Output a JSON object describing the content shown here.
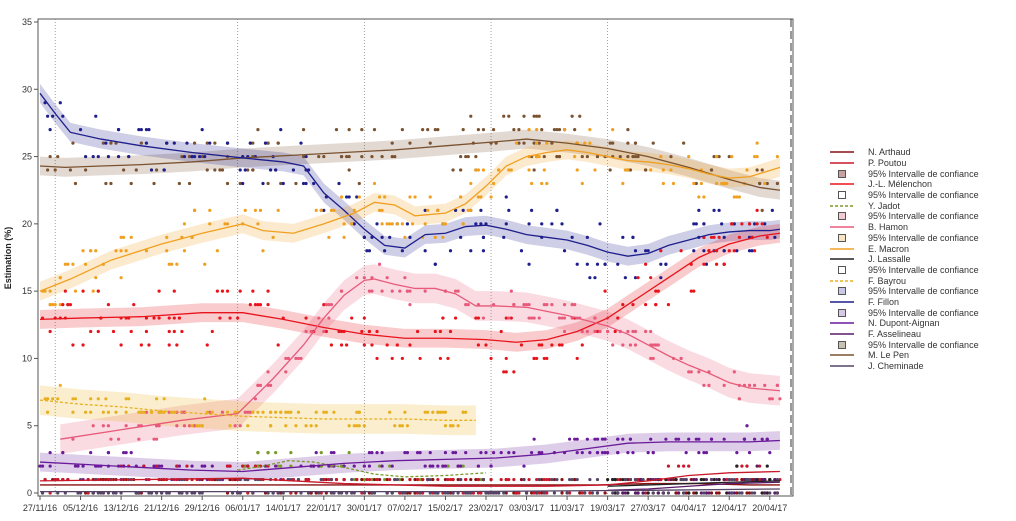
{
  "chart_data": {
    "type": "line",
    "ylabel": "Estimation (%)",
    "xlabel": "",
    "ylim": [
      0,
      35
    ],
    "xlim": [
      0,
      147
    ],
    "yticks": [
      0,
      5,
      10,
      15,
      20,
      25,
      30,
      35
    ],
    "ytick_labels": [
      "0",
      "5",
      "10",
      "15",
      "20",
      "25",
      "30",
      "35"
    ],
    "xticks": [
      0,
      8,
      16,
      24,
      32,
      40,
      48,
      56,
      64,
      72,
      80,
      88,
      96,
      104,
      112,
      120,
      128,
      136,
      144
    ],
    "xtick_labels": [
      "27/11/16",
      "05/12/16",
      "13/12/16",
      "21/12/16",
      "29/12/16",
      "06/01/17",
      "14/01/17",
      "22/01/17",
      "30/01/17",
      "07/02/17",
      "15/02/17",
      "23/02/17",
      "03/03/17",
      "11/03/17",
      "19/03/17",
      "27/03/17",
      "04/04/17",
      "12/04/17",
      "20/04/17"
    ],
    "vlines_dotted": [
      3,
      39,
      64,
      89,
      112
    ],
    "vline_dashed": 148,
    "series": [
      {
        "name": "M. Le Pen",
        "color": "#7a5230",
        "band": true,
        "x": [
          0,
          5,
          12,
          20,
          30,
          40,
          50,
          60,
          70,
          80,
          90,
          96,
          104,
          112,
          120,
          128,
          136,
          142,
          146
        ],
        "y": [
          24.3,
          24.2,
          24.3,
          24.4,
          24.6,
          24.9,
          25.1,
          25.3,
          25.5,
          25.8,
          26.1,
          26.3,
          26.0,
          25.6,
          25.0,
          24.2,
          23.3,
          22.7,
          22.5
        ]
      },
      {
        "name": "F. Fillon",
        "color": "#1f1f8c",
        "band": true,
        "x": [
          0,
          3,
          6,
          12,
          20,
          30,
          40,
          48,
          52,
          56,
          60,
          64,
          68,
          72,
          76,
          80,
          84,
          88,
          92,
          96,
          100,
          104,
          108,
          112,
          116,
          120,
          124,
          128,
          132,
          136,
          140,
          144,
          146
        ],
        "y": [
          29.7,
          28.2,
          26.8,
          26.3,
          25.8,
          25.3,
          24.9,
          24.6,
          24.3,
          22.3,
          21.0,
          19.6,
          18.4,
          18.2,
          19.2,
          19.3,
          19.8,
          19.9,
          19.6,
          19.2,
          19.0,
          18.8,
          18.4,
          17.9,
          17.6,
          17.8,
          18.4,
          18.8,
          19.2,
          19.4,
          19.5,
          19.5,
          19.6
        ]
      },
      {
        "name": "E. Macron",
        "color": "#f0a020",
        "band": true,
        "x": [
          0,
          6,
          14,
          24,
          32,
          40,
          44,
          50,
          56,
          62,
          66,
          70,
          74,
          80,
          84,
          88,
          92,
          96,
          100,
          104,
          108,
          112,
          116,
          120,
          124,
          128,
          132,
          136,
          140,
          146
        ],
        "y": [
          15.0,
          15.9,
          17.3,
          18.5,
          19.3,
          20.0,
          19.5,
          19.3,
          20.0,
          20.8,
          21.6,
          21.4,
          20.6,
          20.8,
          21.5,
          22.8,
          24.3,
          25.0,
          25.3,
          25.5,
          25.3,
          25.0,
          24.7,
          24.6,
          24.4,
          24.1,
          23.7,
          23.4,
          23.5,
          24.2
        ]
      },
      {
        "name": "J.-L. Mélenchon",
        "color": "#e8141c",
        "band": true,
        "x": [
          0,
          8,
          20,
          32,
          40,
          48,
          56,
          64,
          72,
          80,
          88,
          94,
          100,
          106,
          112,
          118,
          124,
          130,
          136,
          142,
          146
        ],
        "y": [
          12.9,
          13.0,
          13.1,
          13.4,
          13.4,
          12.9,
          12.3,
          11.8,
          11.5,
          11.5,
          11.4,
          11.2,
          11.4,
          12.0,
          13.0,
          14.5,
          16.0,
          17.5,
          18.5,
          19.1,
          19.3
        ]
      },
      {
        "name": "B. Hamon",
        "color": "#e85a7a",
        "band": true,
        "x": [
          4,
          16,
          28,
          39,
          46,
          52,
          56,
          60,
          64,
          66,
          70,
          74,
          78,
          82,
          86,
          90,
          96,
          100,
          104,
          108,
          112,
          116,
          120,
          124,
          128,
          132,
          136,
          140,
          146
        ],
        "y": [
          4.0,
          4.7,
          5.4,
          5.9,
          8.5,
          11.0,
          13.0,
          14.7,
          15.8,
          15.9,
          15.5,
          15.2,
          15.2,
          14.8,
          13.9,
          13.9,
          13.8,
          13.5,
          13.2,
          12.8,
          12.4,
          11.8,
          11.0,
          10.2,
          9.5,
          8.9,
          8.2,
          7.8,
          7.6
        ]
      },
      {
        "name": "F. Bayrou",
        "color": "#e8b020",
        "band": true,
        "dashed": true,
        "x": [
          0,
          8,
          16,
          24,
          32,
          40,
          48,
          56,
          64,
          72,
          80,
          86
        ],
        "y": [
          6.9,
          6.6,
          6.4,
          6.1,
          5.9,
          5.7,
          5.6,
          5.5,
          5.5,
          5.5,
          5.4,
          5.4
        ]
      },
      {
        "name": "Y. Jadot",
        "color": "#7a9a2a",
        "band": false,
        "dashed": true,
        "x": [
          39,
          44,
          49,
          54,
          60,
          66,
          72,
          80,
          88
        ],
        "y": [
          1.7,
          2.0,
          2.4,
          2.3,
          1.9,
          1.4,
          1.2,
          1.3,
          1.5
        ]
      },
      {
        "name": "N. Dupont-Aignan",
        "color": "#6a1a9a",
        "band": true,
        "x": [
          0,
          10,
          20,
          30,
          40,
          50,
          60,
          70,
          80,
          90,
          100,
          110,
          116,
          124,
          132,
          140,
          146
        ],
        "y": [
          2.3,
          2.1,
          1.9,
          1.7,
          1.6,
          1.9,
          2.2,
          2.4,
          2.5,
          2.6,
          2.9,
          3.4,
          3.7,
          3.8,
          3.8,
          3.8,
          3.9
        ]
      },
      {
        "name": "N. Arthaud",
        "color": "#8a1010",
        "band": false,
        "x": [
          0,
          20,
          40,
          60,
          80,
          100,
          110,
          120,
          130,
          140,
          146
        ],
        "y": [
          0.6,
          0.6,
          0.6,
          0.6,
          0.6,
          0.6,
          0.6,
          0.7,
          0.7,
          0.6,
          0.6
        ]
      },
      {
        "name": "P. Poutou",
        "color": "#c8182a",
        "band": false,
        "x": [
          0,
          20,
          40,
          60,
          80,
          100,
          112,
          120,
          128,
          136,
          146
        ],
        "y": [
          0.9,
          1.0,
          1.1,
          0.7,
          0.5,
          0.5,
          0.6,
          0.9,
          1.3,
          1.5,
          1.6
        ]
      },
      {
        "name": "J. Lassalle",
        "color": "#222222",
        "band": false,
        "x": [
          112,
          120,
          128,
          136,
          146
        ],
        "y": [
          0.5,
          0.6,
          0.7,
          0.8,
          0.9
        ]
      },
      {
        "name": "F. Asselineau",
        "color": "#5a1a6a",
        "band": false,
        "x": [
          112,
          120,
          128,
          136,
          146
        ],
        "y": [
          0.2,
          0.3,
          0.5,
          0.7,
          0.8
        ]
      },
      {
        "name": "J. Cheminade",
        "color": "#554466",
        "band": false,
        "x": [
          0,
          40,
          80,
          120,
          146
        ],
        "y": [
          0.1,
          0.1,
          0.1,
          0.2,
          0.3
        ]
      }
    ]
  },
  "legend": [
    {
      "label": "N. Arthaud",
      "kind": "line",
      "color": "#8a1010"
    },
    {
      "label": "P. Poutou",
      "kind": "line",
      "color": "#c8182a"
    },
    {
      "label": "95% Intervalle de confiance",
      "kind": "box",
      "color": "#c8a0a0"
    },
    {
      "label": "J.-L. Mélenchon",
      "kind": "line",
      "color": "#e8141c"
    },
    {
      "label": "95% Intervalle de confiance",
      "kind": "box",
      "color": "#ffffff"
    },
    {
      "label": "Y. Jadot",
      "kind": "dash",
      "color": "#7a9a2a"
    },
    {
      "label": "95% Intervalle de confiance",
      "kind": "box",
      "color": "#f4c8d0"
    },
    {
      "label": "B. Hamon",
      "kind": "line",
      "color": "#e85a7a"
    },
    {
      "label": "95% Intervalle de confiance",
      "kind": "box",
      "color": "#f8e4c0"
    },
    {
      "label": "E. Macron",
      "kind": "line",
      "color": "#f0a020"
    },
    {
      "label": "J. Lassalle",
      "kind": "line",
      "color": "#222222"
    },
    {
      "label": "95% Intervalle de confiance",
      "kind": "box",
      "color": "#ffffff"
    },
    {
      "label": "F. Bayrou",
      "kind": "dash",
      "color": "#e8b020"
    },
    {
      "label": "95% Intervalle de confiance",
      "kind": "box",
      "color": "#c8c8e8"
    },
    {
      "label": "F. Fillon",
      "kind": "line",
      "color": "#1f1f8c"
    },
    {
      "label": "95% Intervalle de confiance",
      "kind": "box",
      "color": "#d8c8e8"
    },
    {
      "label": "N. Dupont-Aignan",
      "kind": "line",
      "color": "#6a1a9a"
    },
    {
      "label": "F. Asselineau",
      "kind": "line",
      "color": "#5a1a6a"
    },
    {
      "label": "95% Intervalle de confiance",
      "kind": "box",
      "color": "#c8c0b0"
    },
    {
      "label": "M. Le Pen",
      "kind": "line",
      "color": "#7a5230"
    },
    {
      "label": "J. Cheminade",
      "kind": "line",
      "color": "#554466"
    }
  ]
}
